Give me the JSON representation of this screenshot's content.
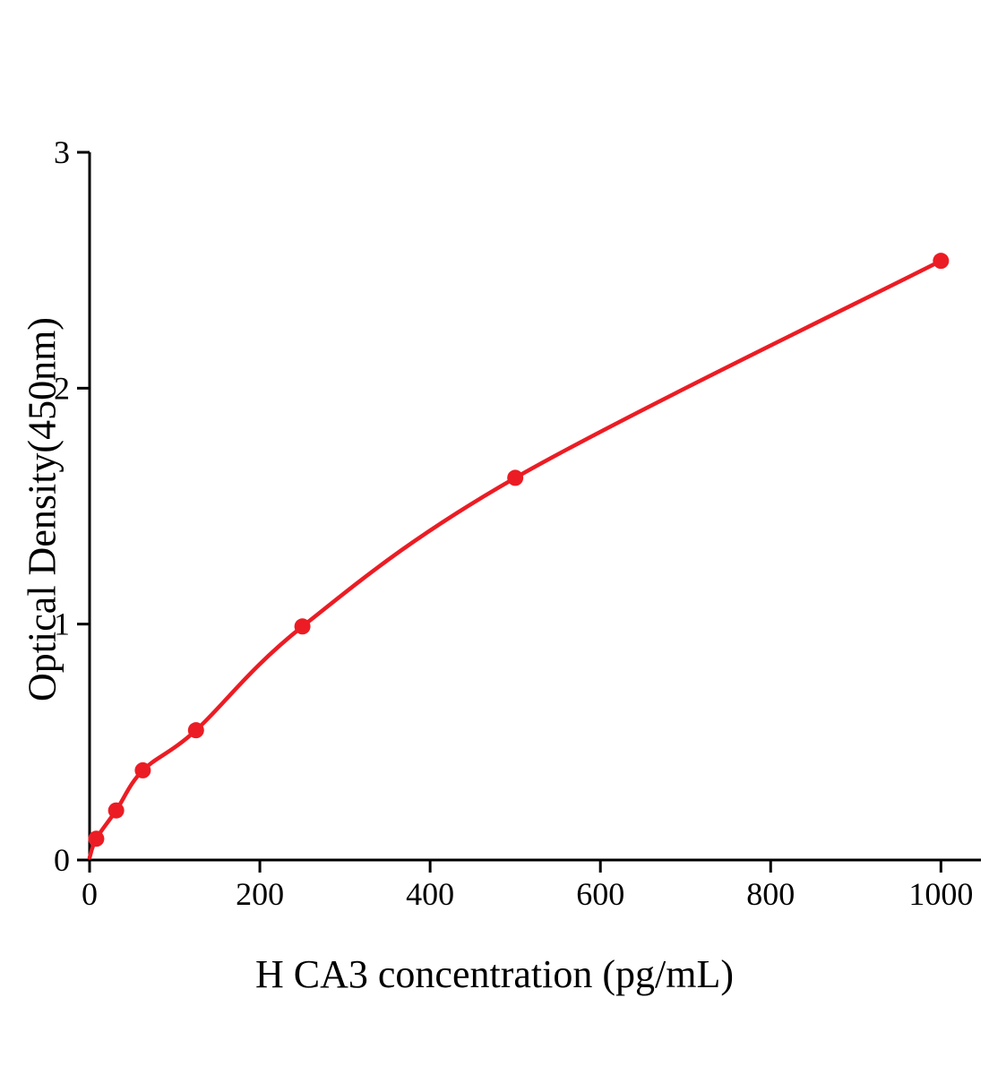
{
  "chart_data": {
    "type": "line",
    "title": "",
    "xlabel": "H CA3 concentration (pg/mL)",
    "ylabel": "Optical Density(450nm)",
    "x_ticks": [
      0,
      200,
      400,
      600,
      800,
      1000
    ],
    "y_ticks": [
      0,
      1,
      2,
      3
    ],
    "xlim": [
      0,
      1047
    ],
    "ylim": [
      0,
      3
    ],
    "grid": false,
    "legend": "none",
    "line_color": "#ec1c24",
    "axis_color": "#000000",
    "marker": "circle",
    "marker_size": 9,
    "curve_start": [
      0,
      0.01
    ],
    "points": [
      {
        "x": 7.8,
        "y": 0.09
      },
      {
        "x": 31.2,
        "y": 0.21
      },
      {
        "x": 62.5,
        "y": 0.38
      },
      {
        "x": 125,
        "y": 0.55
      },
      {
        "x": 250,
        "y": 0.99
      },
      {
        "x": 500,
        "y": 1.62
      },
      {
        "x": 1000,
        "y": 2.54
      }
    ]
  }
}
